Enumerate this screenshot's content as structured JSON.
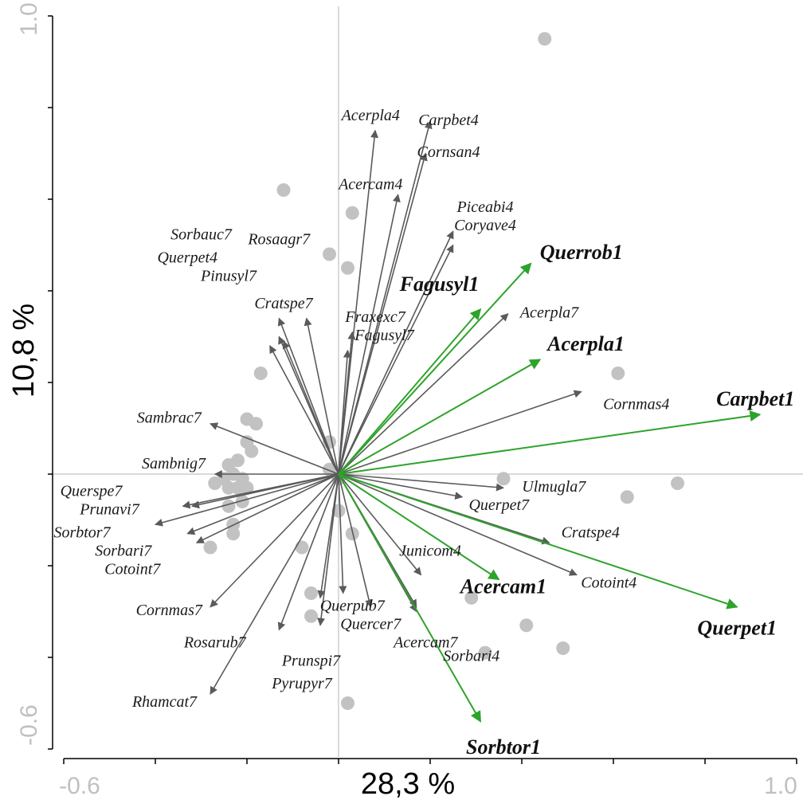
{
  "chart_data": {
    "type": "scatter",
    "subtype": "ordination-biplot",
    "xlabel": "28,3 %",
    "ylabel": "10,8 %",
    "xlim": [
      -0.6,
      1.0
    ],
    "ylim": [
      -0.6,
      1.0
    ],
    "x_tick_labels": [
      "-0.6",
      "1.0"
    ],
    "y_tick_labels": [
      "1.0",
      "-0.6"
    ],
    "grid": false,
    "zero_lines": true,
    "colors": {
      "sites": "#c2c2c2",
      "vectors": "#5a5a5a",
      "highlight_vectors": "#2ea32b",
      "zero_lines": "#b4b4b4",
      "axis": "#000000"
    },
    "sites": [
      {
        "x": 0.45,
        "y": 0.95
      },
      {
        "x": -0.12,
        "y": 0.62
      },
      {
        "x": 0.03,
        "y": 0.57
      },
      {
        "x": -0.02,
        "y": 0.48
      },
      {
        "x": 0.02,
        "y": 0.45
      },
      {
        "x": -0.17,
        "y": 0.22
      },
      {
        "x": 0.61,
        "y": 0.22
      },
      {
        "x": -0.2,
        "y": 0.12
      },
      {
        "x": -0.18,
        "y": 0.11
      },
      {
        "x": -0.2,
        "y": 0.07
      },
      {
        "x": -0.19,
        "y": 0.05
      },
      {
        "x": -0.02,
        "y": 0.07
      },
      {
        "x": -0.22,
        "y": 0.03
      },
      {
        "x": -0.24,
        "y": 0.02
      },
      {
        "x": -0.23,
        "y": 0.0
      },
      {
        "x": -0.21,
        "y": -0.01
      },
      {
        "x": -0.25,
        "y": -0.01
      },
      {
        "x": -0.27,
        "y": -0.02
      },
      {
        "x": -0.22,
        "y": -0.03
      },
      {
        "x": -0.24,
        "y": -0.03
      },
      {
        "x": -0.2,
        "y": -0.03
      },
      {
        "x": -0.02,
        "y": 0.01
      },
      {
        "x": 0.0,
        "y": -0.01
      },
      {
        "x": 0.36,
        "y": -0.01
      },
      {
        "x": 0.74,
        "y": -0.02
      },
      {
        "x": 0.63,
        "y": -0.05
      },
      {
        "x": -0.21,
        "y": -0.06
      },
      {
        "x": -0.24,
        "y": -0.07
      },
      {
        "x": -0.0,
        "y": -0.08
      },
      {
        "x": -0.23,
        "y": -0.11
      },
      {
        "x": -0.23,
        "y": -0.13
      },
      {
        "x": 0.03,
        "y": -0.13
      },
      {
        "x": -0.28,
        "y": -0.16
      },
      {
        "x": -0.08,
        "y": -0.16
      },
      {
        "x": -0.06,
        "y": -0.26
      },
      {
        "x": 0.29,
        "y": -0.27
      },
      {
        "x": -0.06,
        "y": -0.31
      },
      {
        "x": 0.41,
        "y": -0.33
      },
      {
        "x": 0.49,
        "y": -0.38
      },
      {
        "x": 0.32,
        "y": -0.39
      },
      {
        "x": 0.02,
        "y": -0.5
      }
    ],
    "vectors": [
      {
        "label": "Acerpla4",
        "x": 0.08,
        "y": 0.75,
        "group": "gray",
        "lx": 0.07,
        "ly": 0.78
      },
      {
        "label": "Carpbet4",
        "x": 0.2,
        "y": 0.77,
        "group": "gray",
        "lx": 0.24,
        "ly": 0.77
      },
      {
        "label": "Cornsan4",
        "x": 0.19,
        "y": 0.7,
        "group": "gray",
        "lx": 0.24,
        "ly": 0.7
      },
      {
        "label": "Acercam4",
        "x": 0.13,
        "y": 0.61,
        "group": "gray",
        "lx": 0.07,
        "ly": 0.63
      },
      {
        "label": "Piceabi4",
        "x": 0.25,
        "y": 0.53,
        "group": "gray",
        "lx": 0.32,
        "ly": 0.58
      },
      {
        "label": "Coryave4",
        "x": 0.25,
        "y": 0.5,
        "group": "gray",
        "lx": 0.32,
        "ly": 0.54
      },
      {
        "label": "Sorbauc7",
        "x": -0.13,
        "y": 0.3,
        "group": "gray",
        "lx": -0.3,
        "ly": 0.52
      },
      {
        "label": "Rosaagr7",
        "x": -0.12,
        "y": 0.29,
        "group": "gray",
        "lx": -0.13,
        "ly": 0.51
      },
      {
        "label": "Querpet4",
        "x": -0.15,
        "y": 0.28,
        "group": "gray",
        "lx": -0.33,
        "ly": 0.47
      },
      {
        "label": "Pinusyl7",
        "x": -0.07,
        "y": 0.34,
        "group": "gray",
        "lx": -0.24,
        "ly": 0.43
      },
      {
        "label": "Cratspe7",
        "x": -0.13,
        "y": 0.34,
        "group": "gray",
        "lx": -0.12,
        "ly": 0.37
      },
      {
        "label": "Fraxexc7",
        "x": 0.03,
        "y": 0.31,
        "group": "gray",
        "lx": 0.08,
        "ly": 0.34
      },
      {
        "label": "Fagusyl7",
        "x": 0.02,
        "y": 0.27,
        "group": "gray",
        "lx": 0.1,
        "ly": 0.3
      },
      {
        "label": "Acerpla7",
        "x": 0.37,
        "y": 0.35,
        "group": "gray",
        "lx": 0.46,
        "ly": 0.35
      },
      {
        "label": "Cornmas4",
        "x": 0.53,
        "y": 0.18,
        "group": "gray",
        "lx": 0.65,
        "ly": 0.15
      },
      {
        "label": "Sambrac7",
        "x": -0.28,
        "y": 0.11,
        "group": "gray",
        "lx": -0.37,
        "ly": 0.12
      },
      {
        "label": "Sambnig7",
        "x": -0.27,
        "y": 0.0,
        "group": "gray",
        "lx": -0.36,
        "ly": 0.02
      },
      {
        "label": "Querspe7",
        "x": -0.34,
        "y": -0.07,
        "group": "gray",
        "lx": -0.54,
        "ly": -0.04
      },
      {
        "label": "Prunavi7",
        "x": -0.32,
        "y": -0.07,
        "group": "gray",
        "lx": -0.5,
        "ly": -0.08
      },
      {
        "label": "Sorbtor7",
        "x": -0.4,
        "y": -0.11,
        "group": "gray",
        "lx": -0.56,
        "ly": -0.13
      },
      {
        "label": "Sorbari7",
        "x": -0.33,
        "y": -0.13,
        "group": "gray",
        "lx": -0.47,
        "ly": -0.17
      },
      {
        "label": "Cotoint7",
        "x": -0.31,
        "y": -0.15,
        "group": "gray",
        "lx": -0.45,
        "ly": -0.21
      },
      {
        "label": "Cornmas7",
        "x": -0.28,
        "y": -0.29,
        "group": "gray",
        "lx": -0.37,
        "ly": -0.3
      },
      {
        "label": "Rosarub7",
        "x": -0.13,
        "y": -0.34,
        "group": "gray",
        "lx": -0.27,
        "ly": -0.37
      },
      {
        "label": "Rhamcat7",
        "x": -0.28,
        "y": -0.48,
        "group": "gray",
        "lx": -0.38,
        "ly": -0.5
      },
      {
        "label": "Prunspi7",
        "x": -0.04,
        "y": -0.33,
        "group": "gray",
        "lx": -0.06,
        "ly": -0.41
      },
      {
        "label": "Pyrupyr7",
        "x": -0.04,
        "y": -0.27,
        "group": "gray",
        "lx": -0.08,
        "ly": -0.46
      },
      {
        "label": "Querpub7",
        "x": 0.01,
        "y": -0.26,
        "group": "gray",
        "lx": 0.03,
        "ly": -0.29
      },
      {
        "label": "Quercer7",
        "x": 0.07,
        "y": -0.29,
        "group": "gray",
        "lx": 0.07,
        "ly": -0.33
      },
      {
        "label": "Junicom4",
        "x": 0.18,
        "y": -0.22,
        "group": "gray",
        "lx": 0.2,
        "ly": -0.17
      },
      {
        "label": "Acercam7",
        "x": 0.17,
        "y": -0.3,
        "group": "gray",
        "lx": 0.19,
        "ly": -0.37
      },
      {
        "label": "Sorbari4",
        "x": 0.17,
        "y": -0.29,
        "group": "gray",
        "lx": 0.29,
        "ly": -0.4
      },
      {
        "label": "Querpet7",
        "x": 0.27,
        "y": -0.05,
        "group": "gray",
        "lx": 0.35,
        "ly": -0.07
      },
      {
        "label": "Ulmugla7",
        "x": 0.36,
        "y": -0.03,
        "group": "gray",
        "lx": 0.47,
        "ly": -0.03
      },
      {
        "label": "Cratspe4",
        "x": 0.46,
        "y": -0.15,
        "group": "gray",
        "lx": 0.55,
        "ly": -0.13
      },
      {
        "label": "Cotoint4",
        "x": 0.52,
        "y": -0.22,
        "group": "gray",
        "lx": 0.59,
        "ly": -0.24
      },
      {
        "label": "Querrob1",
        "x": 0.42,
        "y": 0.46,
        "group": "green",
        "lx": 0.53,
        "ly": 0.48
      },
      {
        "label": "Fagusyl1",
        "x": 0.31,
        "y": 0.36,
        "group": "green",
        "lx": 0.22,
        "ly": 0.41
      },
      {
        "label": "Acerpla1",
        "x": 0.44,
        "y": 0.25,
        "group": "green",
        "lx": 0.54,
        "ly": 0.28
      },
      {
        "label": "Carpbet1",
        "x": 0.92,
        "y": 0.13,
        "group": "green",
        "lx": 0.91,
        "ly": 0.16
      },
      {
        "label": "Acercam1",
        "x": 0.35,
        "y": -0.23,
        "group": "green",
        "lx": 0.36,
        "ly": -0.25
      },
      {
        "label": "Querpet1",
        "x": 0.87,
        "y": -0.29,
        "group": "green",
        "lx": 0.87,
        "ly": -0.34
      },
      {
        "label": "Sorbtor1",
        "x": 0.31,
        "y": -0.54,
        "group": "green",
        "lx": 0.36,
        "ly": -0.6
      }
    ]
  }
}
